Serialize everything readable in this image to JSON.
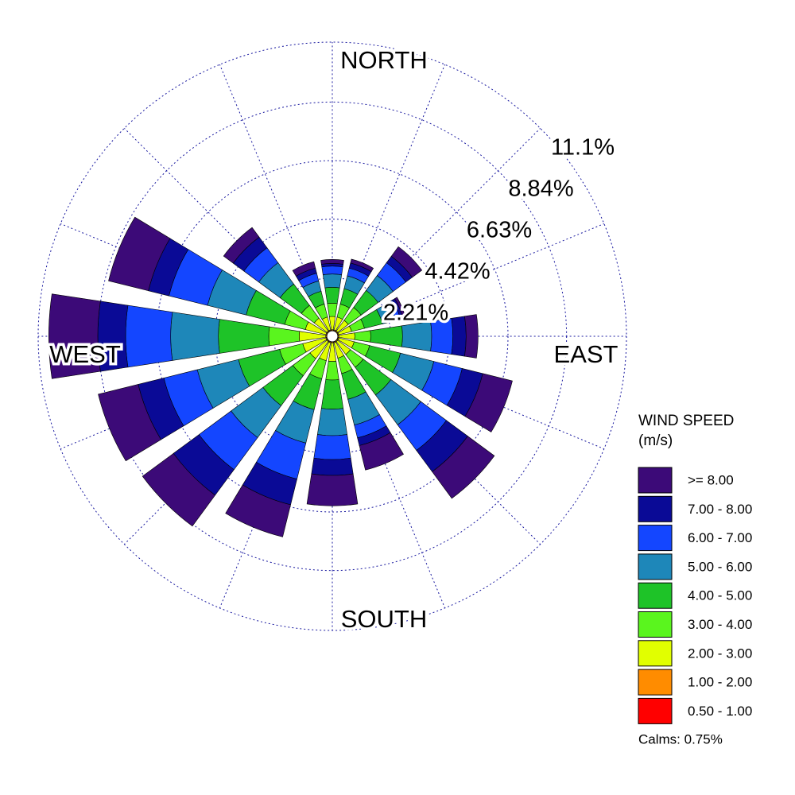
{
  "chart_data": {
    "type": "windrose",
    "categories": [
      "NORTH",
      null,
      null,
      null,
      "EAST",
      null,
      null,
      null,
      "SOUTH",
      null,
      null,
      null,
      "WEST",
      null,
      null,
      null
    ],
    "rlim": [
      0,
      11.1
    ],
    "rticks": [
      {
        "value": 2.21,
        "label": "2.21%"
      },
      {
        "value": 4.42,
        "label": "4.42%"
      },
      {
        "value": 6.63,
        "label": "6.63%"
      },
      {
        "value": 8.84,
        "label": "8.84%"
      },
      {
        "value": 11.1,
        "label": "11.1%"
      }
    ],
    "legend_title": "WIND SPEED",
    "legend_subtitle": "(m/s)",
    "calms": "Calms: 0.75%",
    "series": [
      {
        "name": "0.50 - 1.00",
        "color": "#ff0000",
        "values": [
          0.05,
          0.05,
          0.05,
          0.05,
          0.05,
          0.05,
          0.05,
          0.05,
          0.05,
          0.05,
          0.05,
          0.05,
          0.05,
          0.05,
          0.05,
          0.05
        ]
      },
      {
        "name": "1.00 - 2.00",
        "color": "#ff8c00",
        "values": [
          0.2,
          0.2,
          0.2,
          0.2,
          0.2,
          0.2,
          0.2,
          0.2,
          0.2,
          0.2,
          0.2,
          0.2,
          0.2,
          0.2,
          0.2,
          0.2
        ]
      },
      {
        "name": "2.00 - 3.00",
        "color": "#e1ff00",
        "values": [
          0.5,
          0.5,
          0.5,
          0.5,
          0.6,
          0.6,
          0.6,
          0.6,
          0.7,
          0.7,
          0.8,
          0.9,
          1.0,
          0.8,
          0.6,
          0.5
        ]
      },
      {
        "name": "3.00 - 4.00",
        "color": "#5af51e",
        "values": [
          0.5,
          0.5,
          0.6,
          0.5,
          0.6,
          0.6,
          0.6,
          0.6,
          0.7,
          0.7,
          0.8,
          0.9,
          1.15,
          0.8,
          0.6,
          0.5
        ]
      },
      {
        "name": "4.00 - 5.00",
        "color": "#1ec328",
        "values": [
          0.6,
          0.6,
          0.8,
          0.7,
          1.2,
          1.2,
          1.3,
          1.0,
          1.1,
          1.2,
          1.4,
          1.6,
          1.9,
          1.5,
          1.0,
          0.5
        ]
      },
      {
        "name": "5.00 - 6.00",
        "color": "#1e87b9",
        "values": [
          0.5,
          0.5,
          0.7,
          0.5,
          1.1,
          1.3,
          1.4,
          1.0,
          1.0,
          1.3,
          1.5,
          1.6,
          1.8,
          1.5,
          1.0,
          0.4
        ]
      },
      {
        "name": "6.00 - 7.00",
        "color": "#1446ff",
        "values": [
          0.3,
          0.3,
          0.6,
          0.2,
          0.8,
          1.1,
          1.2,
          0.5,
          0.9,
          1.4,
          1.5,
          1.3,
          1.7,
          1.5,
          0.7,
          0.3
        ]
      },
      {
        "name": "7.00 - 8.00",
        "color": "#0a0a96",
        "values": [
          0.1,
          0.2,
          0.3,
          0.1,
          0.5,
          0.8,
          1.0,
          0.3,
          0.6,
          1.0,
          1.2,
          1.0,
          1.05,
          0.8,
          0.5,
          0.2
        ]
      },
      {
        "name": ">= 8.00",
        "color": "#3c0a78",
        "values": [
          0.15,
          0.15,
          0.45,
          0.1,
          0.45,
          1.15,
          1.25,
          0.95,
          1.15,
          1.25,
          1.45,
          1.55,
          1.85,
          1.55,
          0.45,
          0.25
        ]
      }
    ]
  }
}
